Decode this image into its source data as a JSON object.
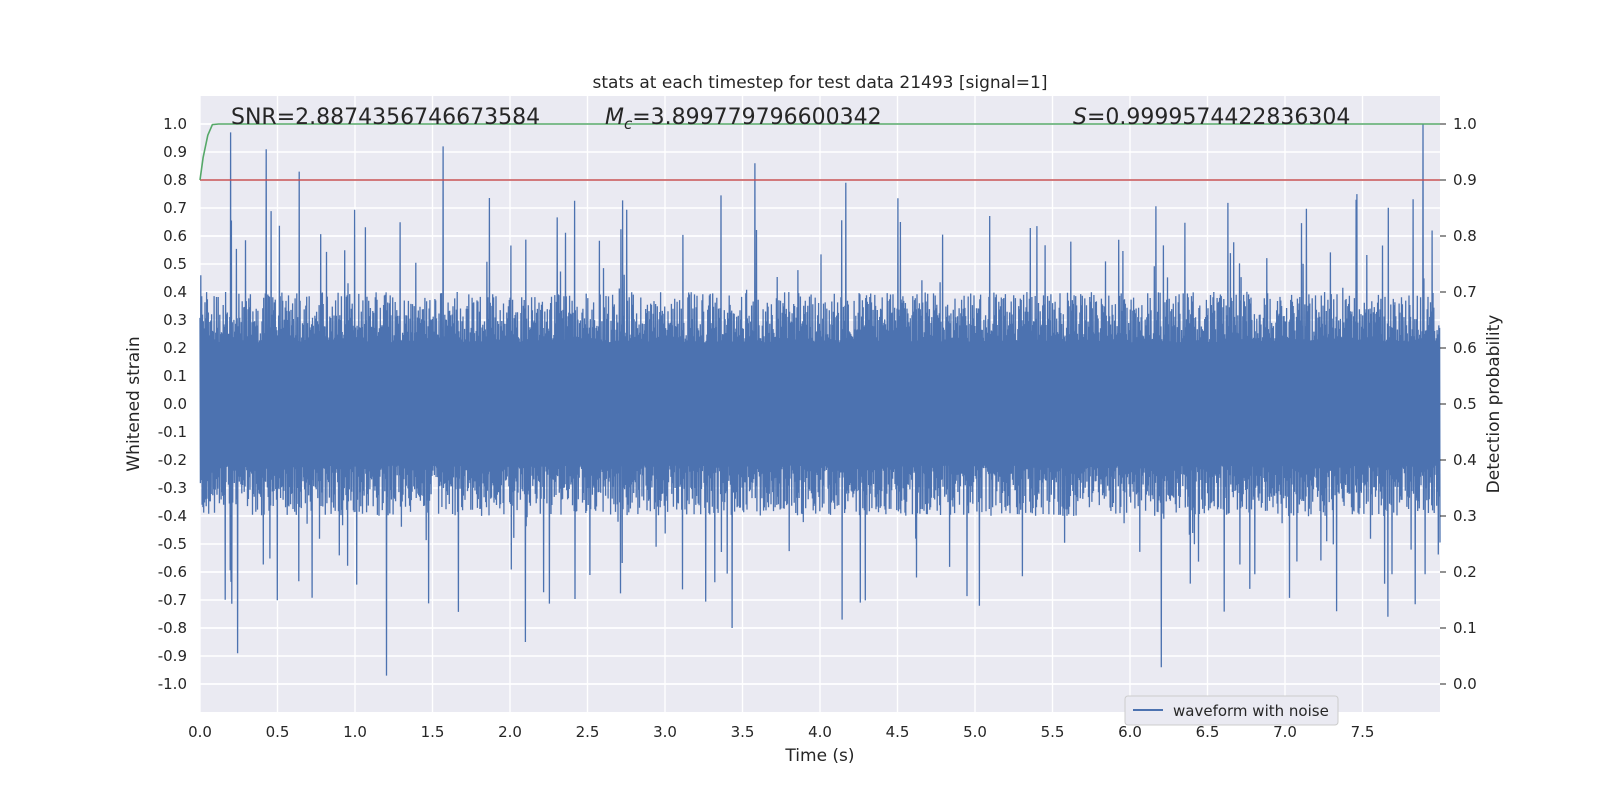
{
  "chart_data": {
    "type": "line",
    "title": "stats at each timestep for test data 21493 [signal=1]",
    "xlabel": "Time (s)",
    "ylabel": "Whitened strain",
    "y2label": "Detection probability",
    "xlim": [
      0.0,
      8.0
    ],
    "ylim": [
      -1.1,
      1.1
    ],
    "y2lim": [
      -0.05,
      1.05
    ],
    "xticks": [
      "0.0",
      "0.5",
      "1.0",
      "1.5",
      "2.0",
      "2.5",
      "3.0",
      "3.5",
      "4.0",
      "4.5",
      "5.0",
      "5.5",
      "6.0",
      "6.5",
      "7.0",
      "7.5"
    ],
    "yticks": [
      "-1.0",
      "-0.9",
      "-0.8",
      "-0.7",
      "-0.6",
      "-0.5",
      "-0.4",
      "-0.3",
      "-0.2",
      "-0.1",
      "0.0",
      "0.1",
      "0.2",
      "0.3",
      "0.4",
      "0.5",
      "0.6",
      "0.7",
      "0.8",
      "0.9",
      "1.0"
    ],
    "y2ticks": [
      "0.0",
      "0.1",
      "0.2",
      "0.3",
      "0.4",
      "0.5",
      "0.6",
      "0.7",
      "0.8",
      "0.9",
      "1.0"
    ],
    "grid": true,
    "legend_placement": "lower-right",
    "legend": [
      "waveform with noise"
    ],
    "annotations": {
      "snr": "SNR=2.8874356746673584",
      "mc_symbol": "M",
      "mc_sub": "c",
      "mc_value": "=3.899779796600342",
      "s_symbol": "S",
      "s_value": "=0.9999574422836304"
    },
    "series": [
      {
        "name": "waveform with noise",
        "axis": "left",
        "color": "#4c72b0",
        "envelope": {
          "typical_amplitude": 0.4,
          "min": -0.97,
          "max": 1.0
        },
        "peaks": [
          [
            0.2,
            0.97
          ],
          [
            0.43,
            0.91
          ],
          [
            0.64,
            0.83
          ],
          [
            1.57,
            0.92
          ],
          [
            3.58,
            0.86
          ],
          [
            4.17,
            0.79
          ],
          [
            7.89,
            1.0
          ]
        ],
        "troughs": [
          [
            0.24,
            -0.89
          ],
          [
            1.2,
            -0.97
          ],
          [
            2.1,
            -0.85
          ],
          [
            3.43,
            -0.8
          ],
          [
            4.14,
            -0.77
          ],
          [
            6.2,
            -0.94
          ],
          [
            7.66,
            -0.76
          ]
        ]
      },
      {
        "axis": "right",
        "color": "#55a868",
        "x": [
          0.0,
          0.02,
          0.05,
          0.08,
          0.12,
          0.2,
          8.0
        ],
        "values": [
          0.9,
          0.94,
          0.98,
          0.999,
          1.0,
          1.0,
          1.0
        ]
      }
    ],
    "threshold": {
      "axis": "right",
      "value": 0.9,
      "color": "#c44e52"
    }
  }
}
